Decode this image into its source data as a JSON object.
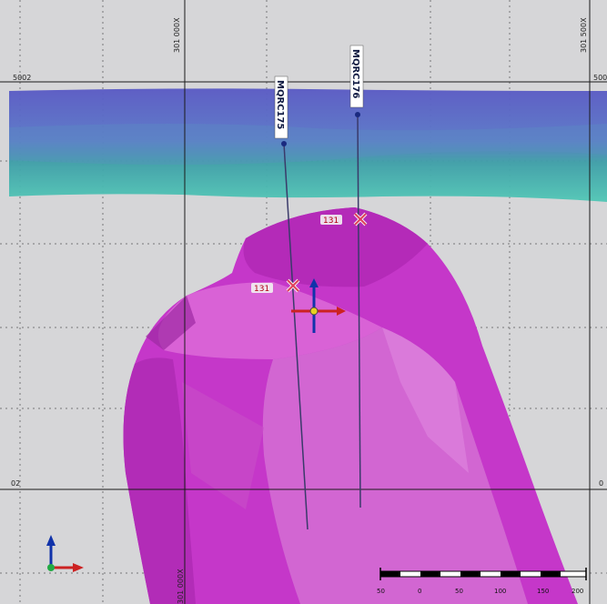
{
  "grid": {
    "top_labels": [
      "301 000X",
      "301 500X"
    ],
    "bottom_labels": [
      "301 000X"
    ],
    "left_labels": [
      "5002",
      "02"
    ],
    "right_labels": [
      "500",
      "0"
    ]
  },
  "drillholes": [
    {
      "name": "MQRC175",
      "marker": "x",
      "depth_label": "131"
    },
    {
      "name": "MQRC176",
      "marker": "x",
      "depth_label": "131"
    }
  ],
  "scale_bar": {
    "ticks": [
      "50",
      "0",
      "50",
      "100",
      "150",
      "200"
    ]
  },
  "colors": {
    "background": "#d6d6d8",
    "grid_major": "#1a1a1a",
    "grid_minor": "#5a5a5a",
    "orebody": "#cc33cc",
    "band_top": "#5c5ec8",
    "band_bottom": "#4fbfb0",
    "axis_x": "#cc2222",
    "axis_y": "#1133aa",
    "axis_z": "#22aa44"
  }
}
